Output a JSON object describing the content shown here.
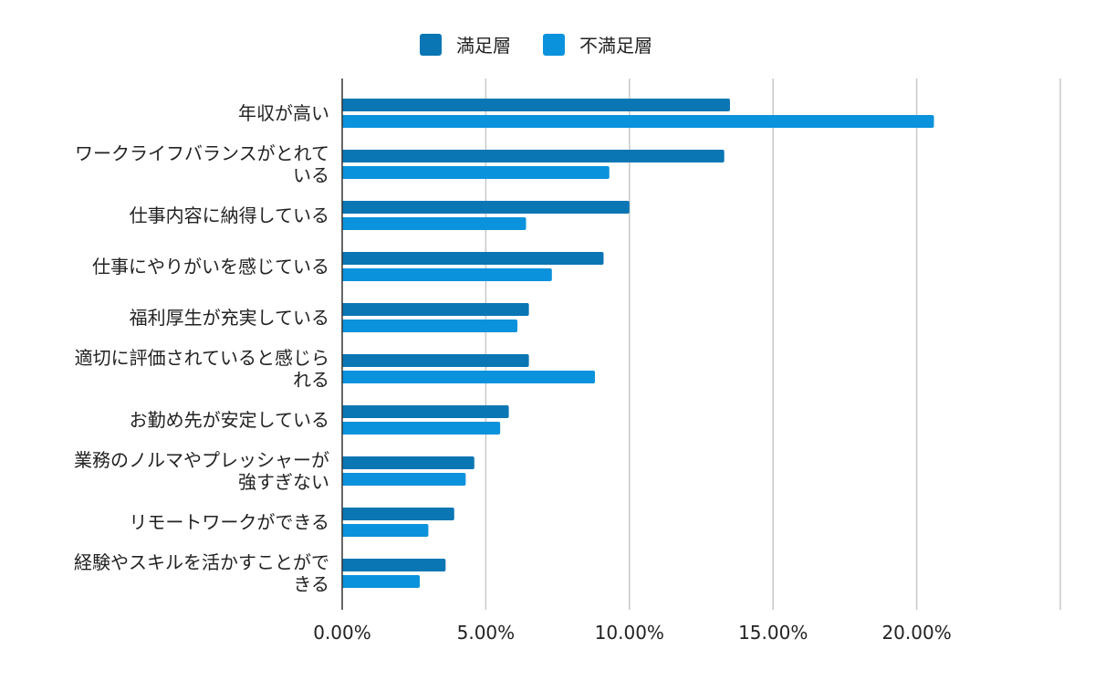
{
  "chart_data": {
    "type": "bar",
    "orientation": "horizontal",
    "categories": [
      [
        "年収が高い"
      ],
      [
        "ワークライフバランスがとれて",
        "いる"
      ],
      [
        "仕事内容に納得している"
      ],
      [
        "仕事にやりがいを感じている"
      ],
      [
        "福利厚生が充実している"
      ],
      [
        "適切に評価されていると感じら",
        "れる"
      ],
      [
        "お勤め先が安定している"
      ],
      [
        "業務のノルマやプレッシャーが",
        "強すぎない"
      ],
      [
        "リモートワークができる"
      ],
      [
        "経験やスキルを活かすことがで",
        "きる"
      ]
    ],
    "series": [
      {
        "name": "満足層",
        "color": "#0a76b4",
        "values": [
          13.5,
          13.3,
          10.0,
          9.1,
          6.5,
          6.5,
          5.8,
          4.6,
          3.9,
          3.6
        ]
      },
      {
        "name": "不満足層",
        "color": "#0b92dc",
        "values": [
          20.6,
          9.3,
          6.4,
          7.3,
          6.1,
          8.8,
          5.5,
          4.3,
          3.0,
          2.7
        ]
      }
    ],
    "xlim": [
      0,
      25
    ],
    "xticks": [
      0,
      5,
      10,
      15,
      20
    ],
    "xtick_labels": [
      "0.00%",
      "5.00%",
      "10.00%",
      "15.00%",
      "20.00%"
    ],
    "grid": true,
    "legend": "top-center"
  }
}
